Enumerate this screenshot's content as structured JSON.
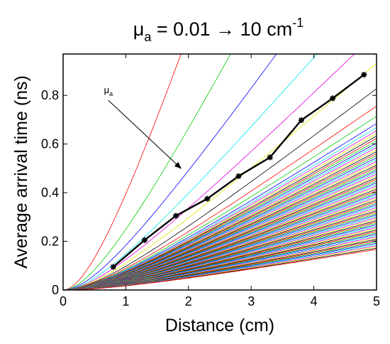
{
  "chart_data": {
    "type": "line",
    "title": {
      "main": "μ",
      "sub": "a",
      "rest": " = 0.01 → 10 cm",
      "sup": "-1"
    },
    "xlabel": "Distance (cm)",
    "ylabel": "Average arrival time (ns)",
    "xlim": [
      0,
      5
    ],
    "ylim": [
      0,
      0.97
    ],
    "xticks": [
      0,
      1,
      2,
      3,
      4,
      5
    ],
    "yticks": [
      0,
      0.2,
      0.4,
      0.6,
      0.8
    ],
    "xtick_labels": [
      "0",
      "1",
      "2",
      "3",
      "4",
      "5"
    ],
    "ytick_labels": [
      "0",
      "0.2",
      "0.4",
      "0.6",
      "0.8"
    ],
    "grid": false,
    "annotation": {
      "label_main": "μ",
      "label_sub": "a",
      "arrow_start": [
        0.72,
        0.78
      ],
      "arrow_end": [
        1.88,
        0.5
      ]
    },
    "series_colors": [
      "#ff0000",
      "#00cc00",
      "#0000ff",
      "#00e5e5",
      "#e000e0",
      "#e5e500",
      "#000000"
    ],
    "model_curves": {
      "count": 85,
      "x_range": [
        0,
        5
      ],
      "endpoint_slopes_ns_per_cm_first": [
        0.79,
        0.5,
        0.37,
        0.3,
        0.255,
        0.225,
        0.2,
        0.183,
        0.173,
        0.166
      ]
    },
    "measured": {
      "name": "",
      "x": [
        0.8,
        1.3,
        1.8,
        2.3,
        2.8,
        3.3,
        3.8,
        4.3,
        4.8
      ],
      "y": [
        0.095,
        0.205,
        0.305,
        0.375,
        0.468,
        0.545,
        0.698,
        0.788,
        0.885
      ],
      "color": "#000000"
    }
  }
}
